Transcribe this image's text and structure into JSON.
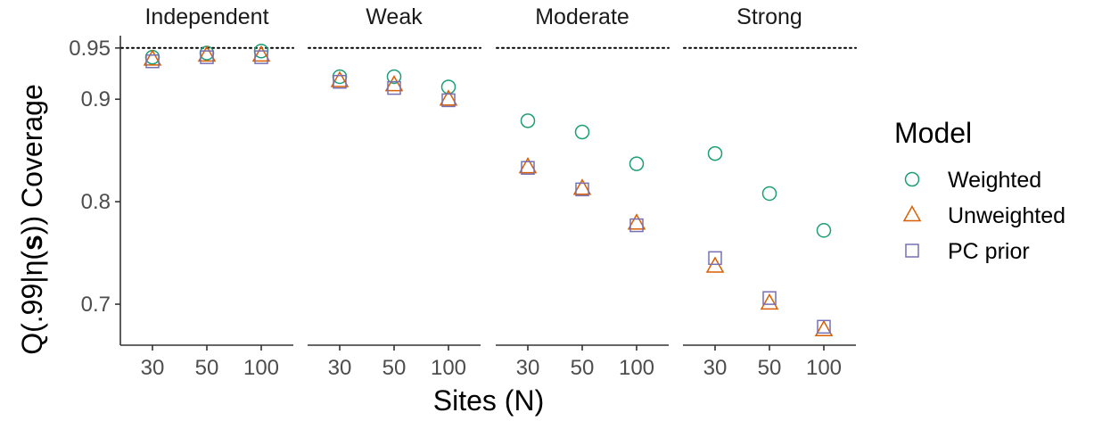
{
  "chart_data": {
    "type": "scatter",
    "panels": [
      "Independent",
      "Weak",
      "Moderate",
      "Strong"
    ],
    "categories": [
      "30",
      "50",
      "100"
    ],
    "ylabel": "Q(.99|η(s)) Coverage",
    "ylabel_parts": [
      "Q(.99|η(",
      "s",
      ")) Coverage"
    ],
    "xlabel": "Sites (N)",
    "ylim": [
      0.66,
      0.962
    ],
    "yticks": [
      0.7,
      0.8,
      0.9,
      0.95
    ],
    "ytick_labels": [
      "0.7",
      "0.8",
      "0.9",
      "0.95"
    ],
    "reference_line": 0.95,
    "reference_line_style": "dotted",
    "grid": false,
    "legend": {
      "title": "Model",
      "position": "right"
    },
    "series": [
      {
        "name": "Weighted",
        "marker": "circle",
        "color": "#1b9e77",
        "values": [
          [
            0.941,
            0.945,
            0.947
          ],
          [
            0.922,
            0.922,
            0.912
          ],
          [
            0.879,
            0.868,
            0.837
          ],
          [
            0.847,
            0.808,
            0.772
          ]
        ]
      },
      {
        "name": "Unweighted",
        "marker": "triangle",
        "color": "#d95f02",
        "values": [
          [
            0.939,
            0.943,
            0.943
          ],
          [
            0.918,
            0.914,
            0.9
          ],
          [
            0.834,
            0.813,
            0.779
          ],
          [
            0.737,
            0.701,
            0.675
          ]
        ]
      },
      {
        "name": "PC prior",
        "marker": "square",
        "color": "#7570b3",
        "values": [
          [
            0.937,
            0.941,
            0.941
          ],
          [
            0.917,
            0.911,
            0.899
          ],
          [
            0.833,
            0.812,
            0.777
          ],
          [
            0.745,
            0.706,
            0.678
          ]
        ]
      }
    ]
  }
}
